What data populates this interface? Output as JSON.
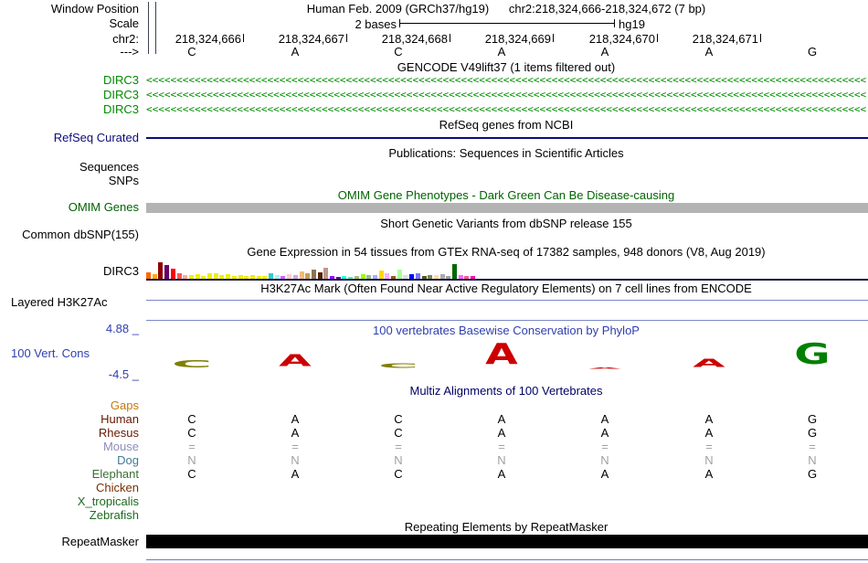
{
  "header": {
    "window_position_label": "Window Position",
    "assembly_title": "Human Feb. 2009 (GRCh37/hg19)",
    "position": "chr2:218,324,666-218,324,672 (7 bp)",
    "scale_label": "Scale",
    "scale_value": "2 bases",
    "genome": "hg19",
    "chrom_label": "chr2:",
    "coordinates": [
      "218,324,666",
      "218,324,667",
      "218,324,668",
      "218,324,669",
      "218,324,670",
      "218,324,671"
    ],
    "strand_label": "--->",
    "bases": [
      "C",
      "A",
      "C",
      "A",
      "A",
      "A",
      "G"
    ]
  },
  "tracks": {
    "gencode": {
      "title": "GENCODE V49lift37 (1 items filtered out)",
      "gene": "DIRC3",
      "row_count": 3,
      "arrow_char": "<",
      "arrow_count": 132,
      "color": "#008c00"
    },
    "refseq": {
      "title": "RefSeq genes from NCBI",
      "label": "RefSeq Curated",
      "color": "#0c0c78"
    },
    "publications": {
      "title": "Publications: Sequences in Scientific Articles",
      "sequences_label": "Sequences",
      "snps_label": "SNPs"
    },
    "omim": {
      "title": "OMIM Gene Phenotypes - Dark Green Can Be Disease-causing",
      "label": "OMIM Genes",
      "color": "#006400",
      "bar_color": "#b3b3b3"
    },
    "dbsnp": {
      "title": "Short Genetic Variants from dbSNP release 155",
      "label": "Common dbSNP(155)"
    },
    "gtex": {
      "title": "Gene Expression in 54 tissues from GTEx RNA-seq of 17382 samples, 948 donors (V8, Aug 2019)",
      "label": "DIRC3",
      "bars": [
        {
          "color": "#ff6600",
          "h": 7
        },
        {
          "color": "#ffaa00",
          "h": 5
        },
        {
          "color": "#8b0000",
          "h": 18
        },
        {
          "color": "#660066",
          "h": 15
        },
        {
          "color": "#ff0000",
          "h": 11
        },
        {
          "color": "#ff5555",
          "h": 6
        },
        {
          "color": "#ffaa99",
          "h": 4
        },
        {
          "color": "#eeee00",
          "h": 4
        },
        {
          "color": "#eeee00",
          "h": 5
        },
        {
          "color": "#eeee00",
          "h": 3
        },
        {
          "color": "#eeee00",
          "h": 6
        },
        {
          "color": "#eeee00",
          "h": 6
        },
        {
          "color": "#eeee00",
          "h": 4
        },
        {
          "color": "#eeee00",
          "h": 5
        },
        {
          "color": "#eeee00",
          "h": 3
        },
        {
          "color": "#eeee00",
          "h": 4
        },
        {
          "color": "#eeee00",
          "h": 3
        },
        {
          "color": "#eeee00",
          "h": 4
        },
        {
          "color": "#eeee00",
          "h": 3
        },
        {
          "color": "#eeee00",
          "h": 3
        },
        {
          "color": "#33cccc",
          "h": 6
        },
        {
          "color": "#aaeeff",
          "h": 4
        },
        {
          "color": "#cc66ff",
          "h": 3
        },
        {
          "color": "#ffcccc",
          "h": 5
        },
        {
          "color": "#ccaadd",
          "h": 4
        },
        {
          "color": "#eebb77",
          "h": 8
        },
        {
          "color": "#cc9955",
          "h": 6
        },
        {
          "color": "#8b7355",
          "h": 10
        },
        {
          "color": "#552200",
          "h": 7
        },
        {
          "color": "#bb9988",
          "h": 12
        },
        {
          "color": "#9900ff",
          "h": 3
        },
        {
          "color": "#660099",
          "h": 2
        },
        {
          "color": "#22ffdd",
          "h": 3
        },
        {
          "color": "#33ffc0",
          "h": 2
        },
        {
          "color": "#aabb66",
          "h": 3
        },
        {
          "color": "#99ff00",
          "h": 5
        },
        {
          "color": "#99bb88",
          "h": 4
        },
        {
          "color": "#aaaaff",
          "h": 4
        },
        {
          "color": "#ffd700",
          "h": 9
        },
        {
          "color": "#ffaaff",
          "h": 6
        },
        {
          "color": "#995522",
          "h": 3
        },
        {
          "color": "#aaff99",
          "h": 10
        },
        {
          "color": "#dddddd",
          "h": 4
        },
        {
          "color": "#0000ff",
          "h": 5
        },
        {
          "color": "#7777ff",
          "h": 6
        },
        {
          "color": "#555522",
          "h": 3
        },
        {
          "color": "#778855",
          "h": 4
        },
        {
          "color": "#ffdd99",
          "h": 4
        },
        {
          "color": "#aaaaaa",
          "h": 5
        },
        {
          "color": "#a0a0a0",
          "h": 3
        },
        {
          "color": "#006600",
          "h": 16
        },
        {
          "color": "#ff66ff",
          "h": 4
        },
        {
          "color": "#ff5599",
          "h": 3
        },
        {
          "color": "#ff00bb",
          "h": 3
        }
      ]
    },
    "h3k27ac": {
      "title": "H3K27Ac Mark (Often Found Near Active Regulatory Elements) on 7 cell lines from ENCODE",
      "label": "Layered H3K27Ac",
      "line_color": "#7b87c4"
    },
    "conservation": {
      "title": "100 vertebrates Basewise Conservation by PhyloP",
      "label": "100 Vert. Cons",
      "max_label": "4.88 _",
      "min_label": "-4.5 _",
      "color": "#2f3fae",
      "letters": [
        {
          "ch": "C",
          "color": "#7f7f00",
          "sx": 3.0,
          "sy": 0.55
        },
        {
          "ch": "A",
          "color": "#cc0000",
          "sx": 2.3,
          "sy": 0.9
        },
        {
          "ch": "C",
          "color": "#7f7f00",
          "sx": 3.0,
          "sy": 0.35
        },
        {
          "ch": "A",
          "color": "#cc0000",
          "sx": 2.3,
          "sy": 1.55
        },
        {
          "ch": "A",
          "color": "#cc0000",
          "sx": 2.3,
          "sy": 0.1
        },
        {
          "ch": "A",
          "color": "#cc0000",
          "sx": 2.3,
          "sy": 0.6
        },
        {
          "ch": "G",
          "color": "#008000",
          "sx": 2.4,
          "sy": 1.55
        }
      ]
    },
    "multiz": {
      "title": "Multiz Alignments of 100 Vertebrates",
      "rows": [
        {
          "name": "Gaps",
          "name_color": "#c8780a",
          "cell_color": "#000000",
          "cells": []
        },
        {
          "name": "Human",
          "name_color": "#661700",
          "cell_color": "#000000",
          "cells": [
            "C",
            "A",
            "C",
            "A",
            "A",
            "A",
            "G"
          ]
        },
        {
          "name": "Rhesus",
          "name_color": "#661700",
          "cell_color": "#000000",
          "cells": [
            "C",
            "A",
            "C",
            "A",
            "A",
            "A",
            "G"
          ]
        },
        {
          "name": "Mouse",
          "name_color": "#8e8eb8",
          "cell_color": "#a0a0a0",
          "cells": [
            "=",
            "=",
            "=",
            "=",
            "=",
            "=",
            "="
          ]
        },
        {
          "name": "Dog",
          "name_color": "#427a99",
          "cell_color": "#a0a0a0",
          "cells": [
            "N",
            "N",
            "N",
            "N",
            "N",
            "N",
            "N"
          ]
        },
        {
          "name": "Elephant",
          "name_color": "#3b6e35",
          "cell_color": "#000000",
          "cells": [
            "C",
            "A",
            "C",
            "A",
            "A",
            "A",
            "G"
          ]
        },
        {
          "name": "Chicken",
          "name_color": "#7a2d00",
          "cell_color": "#000000",
          "cells": []
        },
        {
          "name": "X_tropicalis",
          "name_color": "#1e6b1e",
          "cell_color": "#000000",
          "cells": []
        },
        {
          "name": "Zebrafish",
          "name_color": "#1e6b1e",
          "cell_color": "#000000",
          "cells": []
        }
      ]
    },
    "repeatmasker": {
      "title": "Repeating Elements by RepeatMasker",
      "label": "RepeatMasker"
    }
  }
}
